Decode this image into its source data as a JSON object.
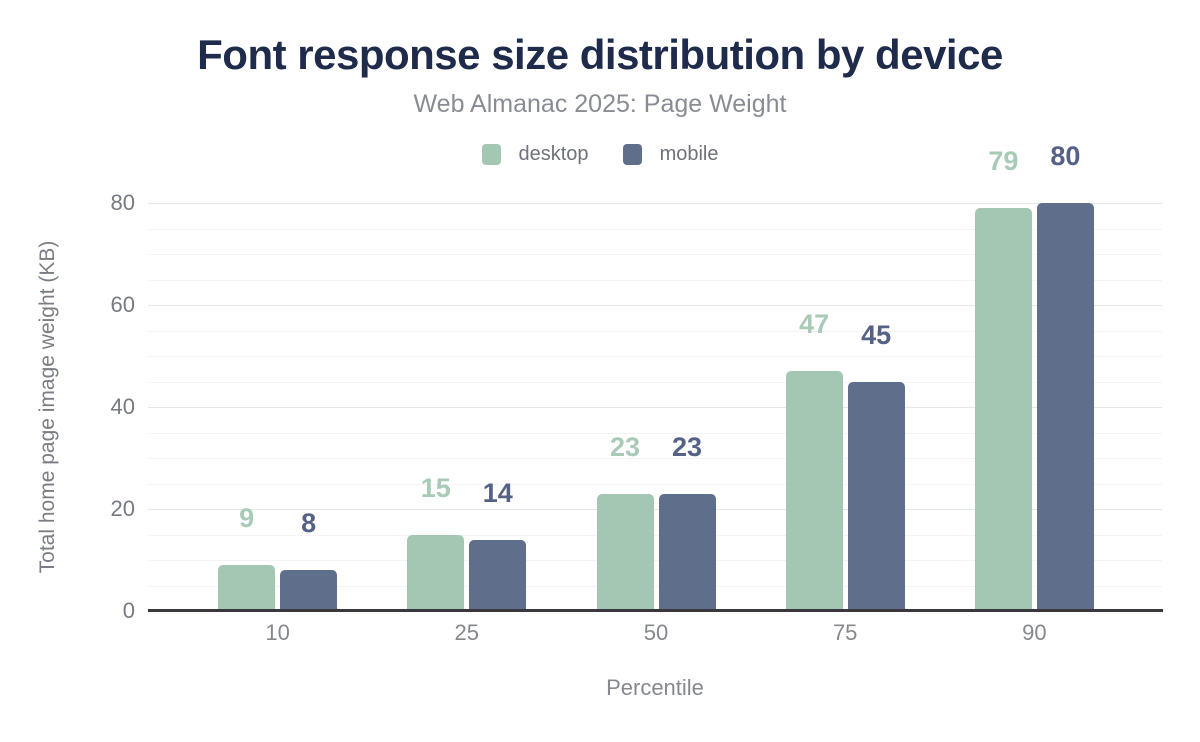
{
  "chart_data": {
    "type": "bar",
    "title": "Font response size distribution by device",
    "subtitle": "Web Almanac 2025: Page Weight",
    "xlabel": "Percentile",
    "ylabel": "Total home page image weight (KB)",
    "categories": [
      "10",
      "25",
      "50",
      "75",
      "90"
    ],
    "series": [
      {
        "name": "desktop",
        "color": "#a4c7b3",
        "label_color": "#a8cab7",
        "values": [
          9,
          15,
          23,
          47,
          79
        ]
      },
      {
        "name": "mobile",
        "color": "#5f6e8b",
        "label_color": "#556185",
        "values": [
          8,
          14,
          23,
          45,
          80
        ]
      }
    ],
    "yticks": [
      0,
      20,
      40,
      60,
      80
    ],
    "ylim": [
      0,
      80
    ],
    "major_grid_step": 20,
    "minor_grid_step": 5,
    "grid": "on",
    "legend_position": "top",
    "data_labels": "on"
  },
  "colors": {
    "title": "#1e2b4a",
    "subtitle": "#888c93",
    "tick_text": "#767a82",
    "axis_line": "#3a383e",
    "major_grid": "#e6e6e9",
    "minor_grid": "#f4f4f6",
    "background": "#ffffff"
  }
}
